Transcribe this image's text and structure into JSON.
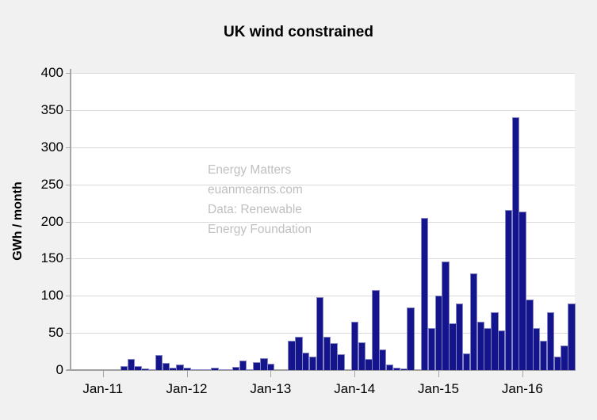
{
  "title": "UK wind constrained",
  "watermark": {
    "lines": [
      "Energy Matters",
      "euanmearns.com",
      "Data: Renewable",
      "Energy Foundation"
    ]
  },
  "y_axis": {
    "label": "GWh / month",
    "tick_values": [
      0,
      50,
      100,
      150,
      200,
      250,
      300,
      350,
      400
    ]
  },
  "x_axis": {
    "tick_labels": [
      "Jan-11",
      "Jan-12",
      "Jan-13",
      "Jan-14",
      "Jan-15",
      "Jan-16"
    ]
  },
  "colors": {
    "bar_fill": "#14148c",
    "bar_border": "#8585c4",
    "gridline": "#d9d9d9",
    "axis": "#a6a6a6",
    "background": "#f1f1f1",
    "plot_background": "#ffffff",
    "watermark_text": "#bfbfbf",
    "text": "#000000"
  },
  "chart_data": {
    "type": "bar",
    "title": "UK wind constrained",
    "xlabel": "",
    "ylabel": "GWh / month",
    "ylim": [
      0,
      400
    ],
    "grid": true,
    "legend": false,
    "x": [
      "Sep-10",
      "Oct-10",
      "Nov-10",
      "Dec-10",
      "Jan-11",
      "Feb-11",
      "Mar-11",
      "Apr-11",
      "May-11",
      "Jun-11",
      "Jul-11",
      "Aug-11",
      "Sep-11",
      "Oct-11",
      "Nov-11",
      "Dec-11",
      "Jan-12",
      "Feb-12",
      "Mar-12",
      "Apr-12",
      "May-12",
      "Jun-12",
      "Jul-12",
      "Aug-12",
      "Sep-12",
      "Oct-12",
      "Nov-12",
      "Dec-12",
      "Jan-13",
      "Feb-13",
      "Mar-13",
      "Apr-13",
      "May-13",
      "Jun-13",
      "Jul-13",
      "Aug-13",
      "Sep-13",
      "Oct-13",
      "Nov-13",
      "Dec-13",
      "Jan-14",
      "Feb-14",
      "Mar-14",
      "Apr-14",
      "May-14",
      "Jun-14",
      "Jul-14",
      "Aug-14",
      "Sep-14",
      "Oct-14",
      "Nov-14",
      "Dec-14",
      "Jan-15",
      "Feb-15",
      "Mar-15",
      "Apr-15",
      "May-15",
      "Jun-15",
      "Jul-15",
      "Aug-15",
      "Sep-15",
      "Oct-15",
      "Nov-15",
      "Dec-15",
      "Jan-16",
      "Feb-16",
      "Mar-16",
      "Apr-16",
      "May-16",
      "Jun-16",
      "Jul-16",
      "Aug-16"
    ],
    "values": [
      0,
      0,
      0,
      0,
      0,
      0,
      0,
      5,
      15,
      5,
      2,
      1,
      20,
      10,
      3,
      7,
      3,
      1,
      1,
      1,
      3,
      1,
      1,
      4,
      13,
      1,
      11,
      16,
      9,
      0,
      0,
      40,
      45,
      23,
      18,
      98,
      45,
      36,
      21,
      0,
      65,
      37,
      15,
      108,
      28,
      8,
      3,
      2,
      84,
      0,
      205,
      57,
      100,
      146,
      63,
      90,
      22,
      130,
      65,
      57,
      78,
      53,
      216,
      340,
      213,
      95,
      57,
      39,
      78,
      18,
      33,
      90
    ]
  }
}
